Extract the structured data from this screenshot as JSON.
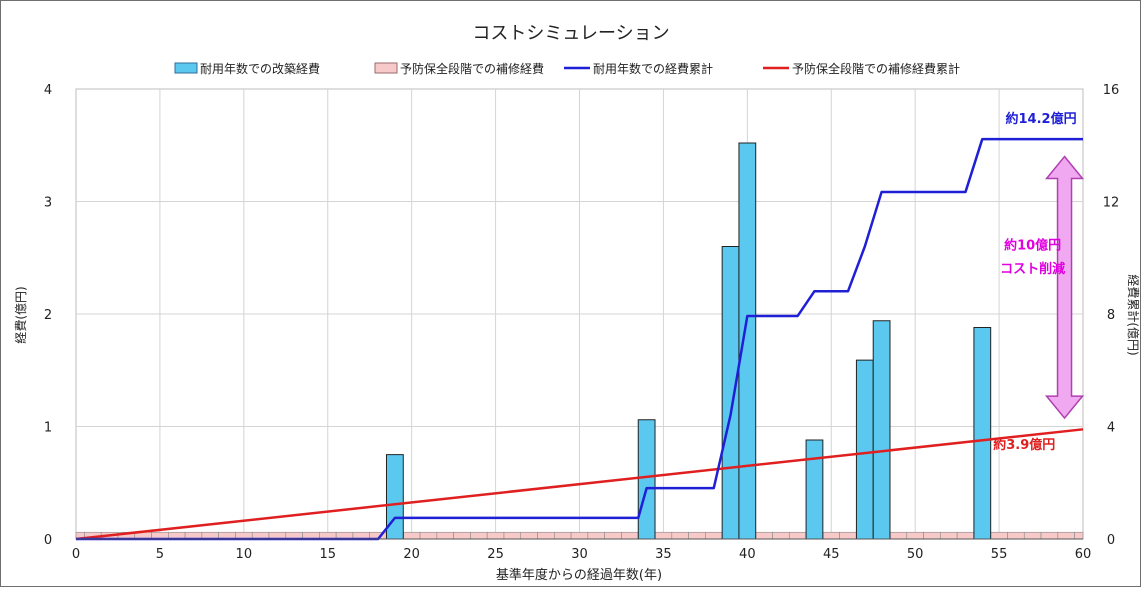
{
  "chart_data": {
    "type": "bar",
    "title": "コストシミュレーション",
    "xlabel": "基準年度からの経過年数(年)",
    "ylabel": "経費(億円)",
    "y2label": "経費累計(億円)",
    "xlim": [
      0,
      60
    ],
    "ylim": [
      0,
      4
    ],
    "y2lim": [
      0,
      16
    ],
    "xticks": [
      "0",
      "5",
      "10",
      "15",
      "20",
      "25",
      "30",
      "35",
      "40",
      "45",
      "50",
      "55",
      "60"
    ],
    "yticks": [
      "0",
      "1",
      "2",
      "3",
      "4"
    ],
    "y2ticks": [
      "0",
      "4",
      "8",
      "12",
      "16"
    ],
    "grid": true,
    "legend_position": "top",
    "series": [
      {
        "name": "耐用年数での改築経費",
        "kind": "bar",
        "axis": "left",
        "color": "#5bc8f0",
        "x": [
          19,
          34,
          39,
          40,
          44,
          47,
          48,
          54
        ],
        "values": [
          0.75,
          1.06,
          2.6,
          3.52,
          0.88,
          1.59,
          1.94,
          1.88
        ]
      },
      {
        "name": "予防保全段階での補修経費",
        "kind": "bar",
        "axis": "left",
        "color": "#f7c9c9",
        "x": [
          0,
          1,
          2,
          3,
          4,
          5,
          6,
          7,
          8,
          9,
          10,
          11,
          12,
          13,
          14,
          15,
          16,
          17,
          18,
          19,
          20,
          21,
          22,
          23,
          24,
          25,
          26,
          27,
          28,
          29,
          30,
          31,
          32,
          33,
          34,
          35,
          36,
          37,
          38,
          39,
          40,
          41,
          42,
          43,
          44,
          45,
          46,
          47,
          48,
          49,
          50,
          51,
          52,
          53,
          54,
          55,
          56,
          57,
          58,
          59,
          60
        ],
        "values": [
          0.06,
          0.06,
          0.06,
          0.06,
          0.06,
          0.06,
          0.06,
          0.06,
          0.06,
          0.06,
          0.06,
          0.06,
          0.06,
          0.06,
          0.06,
          0.06,
          0.06,
          0.06,
          0.06,
          0.06,
          0.06,
          0.06,
          0.06,
          0.06,
          0.06,
          0.06,
          0.06,
          0.06,
          0.06,
          0.06,
          0.06,
          0.06,
          0.06,
          0.06,
          0.06,
          0.06,
          0.06,
          0.06,
          0.06,
          0.06,
          0.06,
          0.06,
          0.06,
          0.06,
          0.06,
          0.06,
          0.06,
          0.06,
          0.06,
          0.06,
          0.06,
          0.06,
          0.06,
          0.06,
          0.06,
          0.06,
          0.06,
          0.06,
          0.06,
          0.06,
          0.06
        ]
      },
      {
        "name": "耐用年数での経費累計",
        "kind": "line",
        "axis": "right",
        "color": "#1f1fd6",
        "x": [
          0,
          18,
          19,
          33.5,
          34,
          38,
          39,
          40,
          43,
          44,
          46,
          47,
          48,
          53,
          54,
          60
        ],
        "values": [
          0,
          0,
          0.75,
          0.75,
          1.81,
          1.81,
          4.41,
          7.93,
          7.93,
          8.81,
          8.81,
          10.4,
          12.34,
          12.34,
          14.22,
          14.22
        ]
      },
      {
        "name": "予防保全段階での補修経費累計",
        "kind": "line",
        "axis": "right",
        "color": "#e02020",
        "x": [
          0,
          60
        ],
        "values": [
          0,
          3.9
        ]
      }
    ],
    "annotations": [
      {
        "text": "約14.2億円",
        "color": "#1f1fd6",
        "x": 57.5,
        "y2": 14.8
      },
      {
        "text": "約10億円",
        "color": "#e000e0",
        "x": 57,
        "y2": 10.3
      },
      {
        "text": "コスト削減",
        "color": "#e000e0",
        "x": 57,
        "y2": 9.45
      },
      {
        "text": "約3.9億円",
        "color": "#e02020",
        "x": 56.5,
        "y2": 3.2
      }
    ],
    "double_arrow": {
      "x": 58.9,
      "from_y2": 13.6,
      "to_y2": 4.3,
      "fill": "#f0a8f0",
      "stroke": "#b040b0"
    }
  }
}
